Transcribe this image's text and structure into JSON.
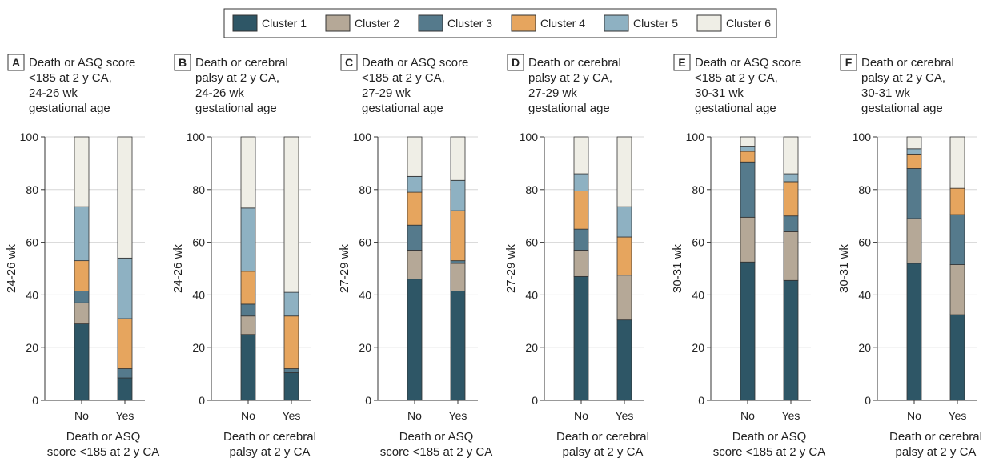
{
  "legend": {
    "items": [
      {
        "label": "Cluster 1",
        "color": "#2e5666"
      },
      {
        "label": "Cluster 2",
        "color": "#b5a897"
      },
      {
        "label": "Cluster 3",
        "color": "#557a8c"
      },
      {
        "label": "Cluster 4",
        "color": "#e6a55e"
      },
      {
        "label": "Cluster 5",
        "color": "#8eb1c2"
      },
      {
        "label": "Cluster 6",
        "color": "#efeee6"
      }
    ]
  },
  "chart_data": [
    {
      "type": "bar",
      "stacked": true,
      "panel_letter": "A",
      "title_lines": [
        "Death or ASQ score",
        "<185 at 2 y CA,",
        "24-26 wk",
        "gestational age"
      ],
      "ylabel": "24-26 wk",
      "xlabel_lines": [
        "Death or ASQ",
        "score <185 at 2 y CA"
      ],
      "categories": [
        "No",
        "Yes"
      ],
      "ylim": [
        0,
        100
      ],
      "yticks": [
        0,
        20,
        40,
        60,
        80,
        100
      ],
      "grid": true,
      "series": [
        {
          "name": "Cluster 1",
          "values": [
            29,
            8.5
          ]
        },
        {
          "name": "Cluster 2",
          "values": [
            8,
            0
          ]
        },
        {
          "name": "Cluster 3",
          "values": [
            4.5,
            3.5
          ]
        },
        {
          "name": "Cluster 4",
          "values": [
            11.5,
            19
          ]
        },
        {
          "name": "Cluster 5",
          "values": [
            20.5,
            23
          ]
        },
        {
          "name": "Cluster 6",
          "values": [
            26.5,
            46
          ]
        }
      ]
    },
    {
      "type": "bar",
      "stacked": true,
      "panel_letter": "B",
      "title_lines": [
        "Death or cerebral",
        "palsy at 2 y CA,",
        "24-26 wk",
        "gestational age"
      ],
      "ylabel": "24-26 wk",
      "xlabel_lines": [
        "Death or cerebral",
        "palsy at 2 y CA"
      ],
      "categories": [
        "No",
        "Yes"
      ],
      "ylim": [
        0,
        100
      ],
      "yticks": [
        0,
        20,
        40,
        60,
        80,
        100
      ],
      "grid": true,
      "series": [
        {
          "name": "Cluster 1",
          "values": [
            25,
            10.5
          ]
        },
        {
          "name": "Cluster 2",
          "values": [
            7,
            0
          ]
        },
        {
          "name": "Cluster 3",
          "values": [
            4.5,
            1.5
          ]
        },
        {
          "name": "Cluster 4",
          "values": [
            12.5,
            20
          ]
        },
        {
          "name": "Cluster 5",
          "values": [
            24,
            9
          ]
        },
        {
          "name": "Cluster 6",
          "values": [
            27,
            59
          ]
        }
      ]
    },
    {
      "type": "bar",
      "stacked": true,
      "panel_letter": "C",
      "title_lines": [
        "Death or ASQ score",
        "<185 at 2 y CA,",
        "27-29 wk",
        "gestational age"
      ],
      "ylabel": "27-29 wk",
      "xlabel_lines": [
        "Death or ASQ",
        "score <185 at 2 y CA"
      ],
      "categories": [
        "No",
        "Yes"
      ],
      "ylim": [
        0,
        100
      ],
      "yticks": [
        0,
        20,
        40,
        60,
        80,
        100
      ],
      "grid": true,
      "series": [
        {
          "name": "Cluster 1",
          "values": [
            46,
            41.5
          ]
        },
        {
          "name": "Cluster 2",
          "values": [
            11,
            10.5
          ]
        },
        {
          "name": "Cluster 3",
          "values": [
            9.5,
            1
          ]
        },
        {
          "name": "Cluster 4",
          "values": [
            12.5,
            19
          ]
        },
        {
          "name": "Cluster 5",
          "values": [
            6,
            11.5
          ]
        },
        {
          "name": "Cluster 6",
          "values": [
            15,
            16.5
          ]
        }
      ]
    },
    {
      "type": "bar",
      "stacked": true,
      "panel_letter": "D",
      "title_lines": [
        "Death or cerebral",
        "palsy at 2 y CA,",
        "27-29 wk",
        "gestational age"
      ],
      "ylabel": "27-29 wk",
      "xlabel_lines": [
        "Death or cerebral",
        "palsy at 2 y CA"
      ],
      "categories": [
        "No",
        "Yes"
      ],
      "ylim": [
        0,
        100
      ],
      "yticks": [
        0,
        20,
        40,
        60,
        80,
        100
      ],
      "grid": true,
      "series": [
        {
          "name": "Cluster 1",
          "values": [
            47,
            30.5
          ]
        },
        {
          "name": "Cluster 2",
          "values": [
            10,
            17
          ]
        },
        {
          "name": "Cluster 3",
          "values": [
            8,
            0
          ]
        },
        {
          "name": "Cluster 4",
          "values": [
            14.5,
            14.5
          ]
        },
        {
          "name": "Cluster 5",
          "values": [
            6.5,
            11.5
          ]
        },
        {
          "name": "Cluster 6",
          "values": [
            14,
            26.5
          ]
        }
      ]
    },
    {
      "type": "bar",
      "stacked": true,
      "panel_letter": "E",
      "title_lines": [
        "Death or ASQ score",
        "<185 at 2 y CA,",
        "30-31 wk",
        "gestational age"
      ],
      "ylabel": "30-31 wk",
      "xlabel_lines": [
        "Death or ASQ",
        "score <185 at 2 y CA"
      ],
      "categories": [
        "No",
        "Yes"
      ],
      "ylim": [
        0,
        100
      ],
      "yticks": [
        0,
        20,
        40,
        60,
        80,
        100
      ],
      "grid": true,
      "series": [
        {
          "name": "Cluster 1",
          "values": [
            52.5,
            45.5
          ]
        },
        {
          "name": "Cluster 2",
          "values": [
            17,
            18.5
          ]
        },
        {
          "name": "Cluster 3",
          "values": [
            21,
            6
          ]
        },
        {
          "name": "Cluster 4",
          "values": [
            4,
            13
          ]
        },
        {
          "name": "Cluster 5",
          "values": [
            2,
            3
          ]
        },
        {
          "name": "Cluster 6",
          "values": [
            3.5,
            14
          ]
        }
      ]
    },
    {
      "type": "bar",
      "stacked": true,
      "panel_letter": "F",
      "title_lines": [
        "Death or cerebral",
        "palsy at 2 y CA,",
        "30-31 wk",
        "gestational age"
      ],
      "ylabel": "30-31 wk",
      "xlabel_lines": [
        "Death or cerebral",
        "palsy at 2 y CA"
      ],
      "categories": [
        "No",
        "Yes"
      ],
      "ylim": [
        0,
        100
      ],
      "yticks": [
        0,
        20,
        40,
        60,
        80,
        100
      ],
      "grid": true,
      "series": [
        {
          "name": "Cluster 1",
          "values": [
            52,
            32.5
          ]
        },
        {
          "name": "Cluster 2",
          "values": [
            17,
            19
          ]
        },
        {
          "name": "Cluster 3",
          "values": [
            19,
            19
          ]
        },
        {
          "name": "Cluster 4",
          "values": [
            5.5,
            10
          ]
        },
        {
          "name": "Cluster 5",
          "values": [
            2,
            0
          ]
        },
        {
          "name": "Cluster 6",
          "values": [
            4.5,
            19.5
          ]
        }
      ]
    }
  ]
}
